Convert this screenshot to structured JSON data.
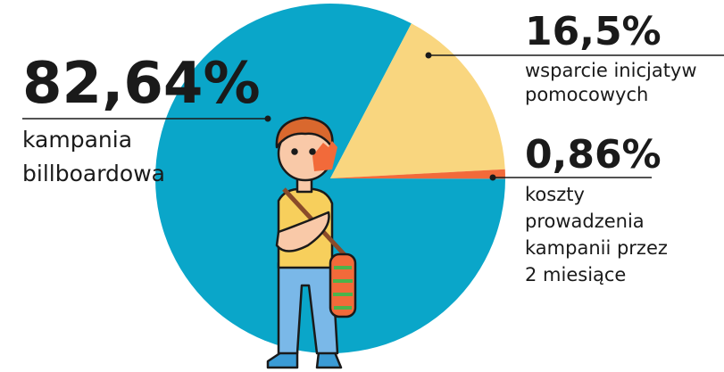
{
  "chart_data": {
    "type": "pie",
    "categories": [
      "kampania\nbillboardowa",
      "wsparcie inicjatyw\npomocowych",
      "koszty\nprowadzenia\nkampanii przez\n2 miesiące"
    ],
    "values": [
      82.64,
      16.5,
      0.86
    ],
    "value_labels": [
      "82,64%",
      "16,5%",
      "0,86%"
    ],
    "colors": [
      "#0aa6c9",
      "#f9d67f",
      "#f26a3a"
    ]
  }
}
